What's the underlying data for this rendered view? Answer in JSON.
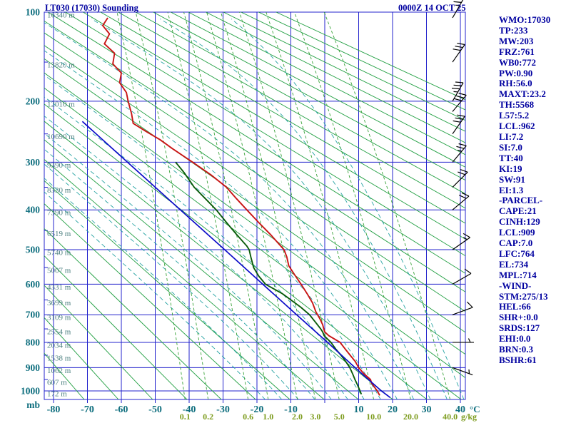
{
  "header": {
    "title": "LT030 (17030) Sounding",
    "timestamp": "0000Z 14 OCT 25"
  },
  "side_panel": {
    "lines": [
      "WMO:17030",
      "TP:233",
      "MW:203",
      "FRZ:761",
      "WB0:772",
      "PW:0.90",
      "RH:56.0",
      "MAXT:23.2",
      "TH:5568",
      "L57:5.2",
      "LCL:962",
      "LI:7.2",
      "SI:7.0",
      "TT:40",
      "KI:19",
      "SW:91",
      "EI:1.3",
      "-PARCEL-",
      "CAPE:21",
      "CINH:129",
      "LCL:909",
      "CAP:7.0",
      "LFC:764",
      "EL:734",
      "MPL:714",
      "-WIND-",
      "STM:275/13",
      "HEL:66",
      "SHR+:0.0",
      "SRDS:127",
      "EHI:0.0",
      "BRN:0.3",
      "BSHR:61"
    ]
  },
  "colors": {
    "grid": "#2323cc",
    "dry_adiabat": "#1f9e40",
    "moist_adiabat": "#27a3a3",
    "mixing_ratio": "#39a339",
    "mixing_label": "#7d9c1e",
    "axis_label": "#0e6e7e",
    "height_label": "#4d8080",
    "title": "#0000a0",
    "barb": "#000000",
    "temperature": "#c81414",
    "dewpoint": "#0a5c0a",
    "parcel": "#0a0ac8"
  },
  "chart_data": {
    "type": "line",
    "diagram": "stuve-sounding",
    "title": "LT030 (17030) Sounding",
    "timestamp": "0000Z 14 OCT 25",
    "x_axis": {
      "label": "°C",
      "min": -80,
      "max": 40,
      "tick_step": 10,
      "tick_labels": [
        -80,
        -70,
        -60,
        -50,
        -40,
        -30,
        -20,
        -10,
        10,
        20,
        30,
        40
      ]
    },
    "y_axis": {
      "label": "mb",
      "ticks": [
        100,
        200,
        300,
        400,
        500,
        600,
        700,
        800,
        900,
        1000
      ],
      "minor_ticks": [
        150,
        250,
        350,
        450,
        550,
        650,
        750,
        850,
        950
      ],
      "scale_exponent": 0.286,
      "top": 100,
      "bottom": 1040
    },
    "height_labels": [
      [
        100,
        "16340 m"
      ],
      [
        150,
        "13820 m"
      ],
      [
        200,
        "12010 m"
      ],
      [
        250,
        "10690 m"
      ],
      [
        300,
        "9390 m"
      ],
      [
        350,
        "8330 m"
      ],
      [
        400,
        "7390 m"
      ],
      [
        450,
        "6519 m"
      ],
      [
        500,
        "5740 m"
      ],
      [
        550,
        "5007 m"
      ],
      [
        600,
        "4331 m"
      ],
      [
        650,
        "3699 m"
      ],
      [
        700,
        "3109 m"
      ],
      [
        750,
        "2554 m"
      ],
      [
        800,
        "2034 m"
      ],
      [
        850,
        "1538 m"
      ],
      [
        900,
        "1062 m"
      ],
      [
        950,
        "607 m"
      ],
      [
        1000,
        "172 m"
      ]
    ],
    "mixing_ratio_lines": {
      "values_g_kg": [
        0.1,
        0.2,
        0.6,
        1.0,
        2.0,
        3.0,
        5.0,
        10.0,
        20.0,
        40.0
      ],
      "labels": [
        "0.1",
        "0.2",
        "0.6",
        "1.0",
        "2.0",
        "3.0",
        "5.0",
        "10.0",
        "20.0",
        "40.0"
      ],
      "unit_label": "g/kg"
    },
    "dry_adiabats": {
      "theta_min_k": 200,
      "theta_max_k": 500,
      "step_k": 10
    },
    "moist_adiabats": {
      "thetaw_min_c": -20,
      "thetaw_max_c": 40,
      "step_c": 5
    },
    "series": [
      {
        "name": "temperature",
        "color": "#c81414",
        "points": [
          [
            105,
            -64
          ],
          [
            112,
            -65.5
          ],
          [
            120,
            -63.5
          ],
          [
            130,
            -65
          ],
          [
            140,
            -62
          ],
          [
            152,
            -62.5
          ],
          [
            163,
            -60
          ],
          [
            175,
            -60.5
          ],
          [
            188,
            -58.5
          ],
          [
            200,
            -58
          ],
          [
            218,
            -57
          ],
          [
            233,
            -56.5
          ],
          [
            245,
            -53
          ],
          [
            260,
            -48.5
          ],
          [
            275,
            -45
          ],
          [
            300,
            -39
          ],
          [
            325,
            -33.5
          ],
          [
            350,
            -29
          ],
          [
            375,
            -26
          ],
          [
            400,
            -23
          ],
          [
            430,
            -19.5
          ],
          [
            460,
            -16
          ],
          [
            490,
            -13
          ],
          [
            500,
            -12
          ],
          [
            520,
            -11.2
          ],
          [
            545,
            -10.6
          ],
          [
            570,
            -9
          ],
          [
            600,
            -7
          ],
          [
            630,
            -5.2
          ],
          [
            660,
            -3.6
          ],
          [
            690,
            -2.6
          ],
          [
            715,
            -1.4
          ],
          [
            735,
            -0.6
          ],
          [
            750,
            -0.3
          ],
          [
            761,
            0
          ],
          [
            775,
            1.2
          ],
          [
            800,
            4.5
          ],
          [
            825,
            6
          ],
          [
            850,
            7.5
          ],
          [
            875,
            9
          ],
          [
            900,
            10
          ],
          [
            925,
            11.5
          ],
          [
            950,
            13.5
          ],
          [
            965,
            13.8
          ],
          [
            980,
            14.5
          ],
          [
            1000,
            15.5
          ],
          [
            1020,
            16.2
          ]
        ]
      },
      {
        "name": "dewpoint",
        "color": "#0a5c0a",
        "points": [
          [
            300,
            -44
          ],
          [
            320,
            -41.5
          ],
          [
            350,
            -38.5
          ],
          [
            380,
            -34.5
          ],
          [
            400,
            -32
          ],
          [
            430,
            -29
          ],
          [
            460,
            -26
          ],
          [
            490,
            -23
          ],
          [
            500,
            -22.3
          ],
          [
            520,
            -21.8
          ],
          [
            550,
            -21
          ],
          [
            575,
            -19.5
          ],
          [
            600,
            -17.5
          ],
          [
            615,
            -15
          ],
          [
            630,
            -12.5
          ],
          [
            650,
            -10
          ],
          [
            675,
            -7
          ],
          [
            700,
            -4.5
          ],
          [
            725,
            -2.8
          ],
          [
            750,
            -1.2
          ],
          [
            761,
            -0.6
          ],
          [
            775,
            -0.2
          ],
          [
            800,
            1.8
          ],
          [
            825,
            3.2
          ],
          [
            850,
            4.8
          ],
          [
            875,
            6.2
          ],
          [
            900,
            7.4
          ],
          [
            925,
            8.2
          ],
          [
            950,
            8.9
          ],
          [
            975,
            9.7
          ],
          [
            1000,
            10.4
          ],
          [
            1015,
            10.8
          ]
        ]
      },
      {
        "name": "parcel",
        "color": "#0a0ac8",
        "points": [
          [
            230,
            -71.5
          ],
          [
            300,
            -58.2
          ],
          [
            400,
            -42.6
          ],
          [
            500,
            -29.5
          ],
          [
            600,
            -18.3
          ],
          [
            700,
            -8.3
          ],
          [
            800,
            0.8
          ],
          [
            900,
            8.9
          ],
          [
            1000,
            16.7
          ],
          [
            1030,
            19.3
          ]
        ]
      }
    ],
    "wind_barbs": [
      [
        105,
        30,
        25
      ],
      [
        150,
        35,
        30
      ],
      [
        200,
        30,
        35
      ],
      [
        215,
        40,
        30
      ],
      [
        250,
        35,
        30
      ],
      [
        300,
        40,
        25
      ],
      [
        350,
        45,
        20
      ],
      [
        400,
        50,
        20
      ],
      [
        500,
        55,
        15
      ],
      [
        600,
        60,
        10
      ],
      [
        700,
        70,
        10
      ],
      [
        800,
        90,
        5
      ],
      [
        900,
        110,
        5
      ]
    ]
  }
}
